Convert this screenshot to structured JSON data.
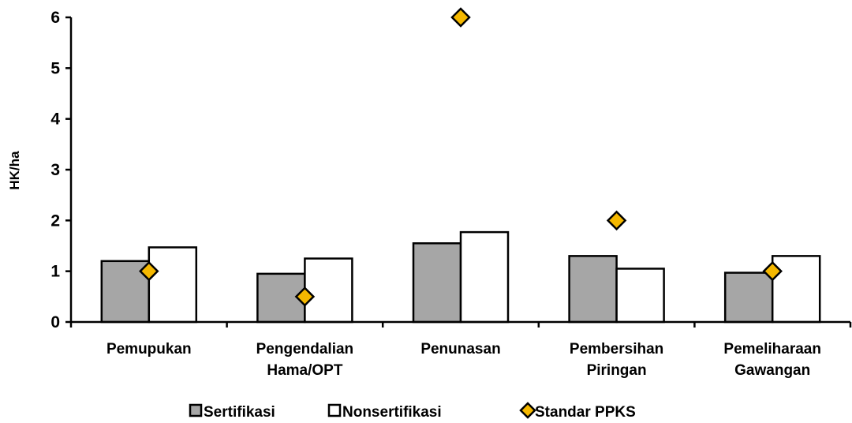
{
  "chart_data": {
    "type": "bar",
    "categories": [
      [
        "Pemupukan"
      ],
      [
        "Pengendalian",
        "Hama/OPT"
      ],
      [
        "Penunasan"
      ],
      [
        "Pembersihan",
        "Piringan"
      ],
      [
        "Pemeliharaan",
        "Gawangan"
      ]
    ],
    "series": [
      {
        "name": "Sertifikasi",
        "kind": "bar",
        "color": "#a6a6a6",
        "values": [
          1.2,
          0.95,
          1.55,
          1.3,
          0.97
        ]
      },
      {
        "name": "Nonsertifikasi",
        "kind": "bar",
        "color": "#ffffff",
        "values": [
          1.47,
          1.25,
          1.77,
          1.05,
          1.3
        ]
      },
      {
        "name": "Standar PPKS",
        "kind": "marker",
        "color": "#f5b800",
        "values": [
          1,
          0.5,
          6,
          2,
          1
        ]
      }
    ],
    "ylabel": "HK/ha",
    "ylim": [
      0,
      6
    ],
    "yticks": [
      "0",
      "1",
      "2",
      "3",
      "4",
      "5",
      "6"
    ],
    "grid": false,
    "legend_position": "bottom"
  }
}
